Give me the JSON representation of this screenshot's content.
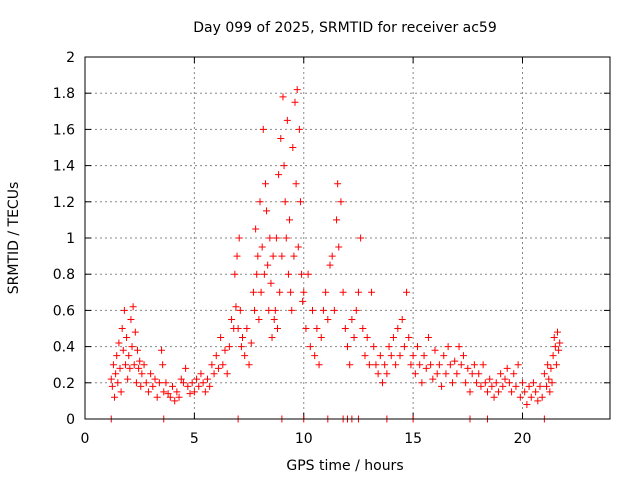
{
  "chart_data": {
    "type": "scatter",
    "title": "Day 099 of 2025, SRMTID for receiver ac59",
    "xlabel": "GPS time / hours",
    "ylabel": "SRMTID / TECUs",
    "xlim": [
      0,
      24
    ],
    "ylim": [
      0,
      2
    ],
    "x_ticks": [
      0,
      5,
      10,
      15,
      20
    ],
    "y_ticks": [
      0,
      0.2,
      0.4,
      0.6,
      0.8,
      1,
      1.2,
      1.4,
      1.6,
      1.8,
      2
    ],
    "x_tick_labels": [
      "0",
      "5",
      "10",
      "15",
      "20"
    ],
    "y_tick_labels": [
      "0",
      "0.2",
      "0.4",
      "0.6",
      "0.8",
      "1",
      "1.2",
      "1.4",
      "1.6",
      "1.8",
      "2"
    ],
    "grid": true,
    "marker": "+",
    "color": "#ff0000",
    "series": [
      {
        "name": "SRMTID",
        "points": [
          [
            1.2,
            0.22
          ],
          [
            1.25,
            0.18
          ],
          [
            1.3,
            0.3
          ],
          [
            1.35,
            0.12
          ],
          [
            1.4,
            0.25
          ],
          [
            1.45,
            0.35
          ],
          [
            1.5,
            0.2
          ],
          [
            1.55,
            0.42
          ],
          [
            1.6,
            0.28
          ],
          [
            1.65,
            0.15
          ],
          [
            1.7,
            0.5
          ],
          [
            1.75,
            0.38
          ],
          [
            1.8,
            0.6
          ],
          [
            1.85,
            0.3
          ],
          [
            1.9,
            0.45
          ],
          [
            1.95,
            0.22
          ],
          [
            2.0,
            0.35
          ],
          [
            2.05,
            0.28
          ],
          [
            2.1,
            0.55
          ],
          [
            2.15,
            0.4
          ],
          [
            2.2,
            0.62
          ],
          [
            2.25,
            0.3
          ],
          [
            2.3,
            0.48
          ],
          [
            2.35,
            0.2
          ],
          [
            2.4,
            0.38
          ],
          [
            2.45,
            0.28
          ],
          [
            2.5,
            0.32
          ],
          [
            2.55,
            0.18
          ],
          [
            2.6,
            0.25
          ],
          [
            2.7,
            0.3
          ],
          [
            2.8,
            0.2
          ],
          [
            2.9,
            0.15
          ],
          [
            3.0,
            0.25
          ],
          [
            3.1,
            0.18
          ],
          [
            3.2,
            0.22
          ],
          [
            3.3,
            0.12
          ],
          [
            3.4,
            0.2
          ],
          [
            3.5,
            0.38
          ],
          [
            3.55,
            0.3
          ],
          [
            3.6,
            0.15
          ],
          [
            3.7,
            0.2
          ],
          [
            3.8,
            0.14
          ],
          [
            3.9,
            0.12
          ],
          [
            4.0,
            0.18
          ],
          [
            4.1,
            0.1
          ],
          [
            4.2,
            0.15
          ],
          [
            4.3,
            0.12
          ],
          [
            4.4,
            0.22
          ],
          [
            4.5,
            0.2
          ],
          [
            4.6,
            0.28
          ],
          [
            4.7,
            0.18
          ],
          [
            4.8,
            0.14
          ],
          [
            4.9,
            0.2
          ],
          [
            5.0,
            0.15
          ],
          [
            5.1,
            0.22
          ],
          [
            5.2,
            0.18
          ],
          [
            5.3,
            0.25
          ],
          [
            5.4,
            0.2
          ],
          [
            5.5,
            0.15
          ],
          [
            5.6,
            0.22
          ],
          [
            5.7,
            0.18
          ],
          [
            5.8,
            0.3
          ],
          [
            5.9,
            0.25
          ],
          [
            6.0,
            0.35
          ],
          [
            6.1,
            0.28
          ],
          [
            6.2,
            0.45
          ],
          [
            6.3,
            0.3
          ],
          [
            6.4,
            0.38
          ],
          [
            6.5,
            0.25
          ],
          [
            6.6,
            0.4
          ],
          [
            6.7,
            0.55
          ],
          [
            6.8,
            0.5
          ],
          [
            6.85,
            0.8
          ],
          [
            6.9,
            0.62
          ],
          [
            6.95,
            0.9
          ],
          [
            7.0,
            0.5
          ],
          [
            7.05,
            1.0
          ],
          [
            7.1,
            0.6
          ],
          [
            7.15,
            0.4
          ],
          [
            7.2,
            0.45
          ],
          [
            7.3,
            0.35
          ],
          [
            7.4,
            0.5
          ],
          [
            7.5,
            0.3
          ],
          [
            7.6,
            0.42
          ],
          [
            7.7,
            0.7
          ],
          [
            7.75,
            0.6
          ],
          [
            7.8,
            1.05
          ],
          [
            7.85,
            0.8
          ],
          [
            7.9,
            0.9
          ],
          [
            7.95,
            0.55
          ],
          [
            8.0,
            1.2
          ],
          [
            8.05,
            0.7
          ],
          [
            8.1,
            0.95
          ],
          [
            8.15,
            1.6
          ],
          [
            8.2,
            0.8
          ],
          [
            8.25,
            1.3
          ],
          [
            8.3,
            1.15
          ],
          [
            8.35,
            0.85
          ],
          [
            8.4,
            0.6
          ],
          [
            8.45,
            1.0
          ],
          [
            8.5,
            0.75
          ],
          [
            8.55,
            0.45
          ],
          [
            8.6,
            0.9
          ],
          [
            8.65,
            0.55
          ],
          [
            8.7,
            0.6
          ],
          [
            8.75,
            1.0
          ],
          [
            8.8,
            0.5
          ],
          [
            8.85,
            1.35
          ],
          [
            8.9,
            0.7
          ],
          [
            8.95,
            1.55
          ],
          [
            9.0,
            0.9
          ],
          [
            9.05,
            1.78
          ],
          [
            9.1,
            1.4
          ],
          [
            9.15,
            1.2
          ],
          [
            9.2,
            1.0
          ],
          [
            9.25,
            1.65
          ],
          [
            9.3,
            0.8
          ],
          [
            9.35,
            1.1
          ],
          [
            9.4,
            0.7
          ],
          [
            9.45,
            0.6
          ],
          [
            9.5,
            1.5
          ],
          [
            9.55,
            0.9
          ],
          [
            9.6,
            1.75
          ],
          [
            9.65,
            1.3
          ],
          [
            9.7,
            1.82
          ],
          [
            9.75,
            0.95
          ],
          [
            9.8,
            1.6
          ],
          [
            9.85,
            1.2
          ],
          [
            9.9,
            0.8
          ],
          [
            9.95,
            0.65
          ],
          [
            10.0,
            0.7
          ],
          [
            10.1,
            0.5
          ],
          [
            10.2,
            0.8
          ],
          [
            10.3,
            0.4
          ],
          [
            10.4,
            0.6
          ],
          [
            10.5,
            0.35
          ],
          [
            10.6,
            0.5
          ],
          [
            10.7,
            0.3
          ],
          [
            10.8,
            0.45
          ],
          [
            10.9,
            0.6
          ],
          [
            11.0,
            0.7
          ],
          [
            11.1,
            0.55
          ],
          [
            11.2,
            0.85
          ],
          [
            11.3,
            0.9
          ],
          [
            11.4,
            0.6
          ],
          [
            11.5,
            1.1
          ],
          [
            11.55,
            1.3
          ],
          [
            11.6,
            0.95
          ],
          [
            11.7,
            1.2
          ],
          [
            11.8,
            0.7
          ],
          [
            11.9,
            0.5
          ],
          [
            12.0,
            0.4
          ],
          [
            12.1,
            0.3
          ],
          [
            12.2,
            0.55
          ],
          [
            12.3,
            0.45
          ],
          [
            12.4,
            0.6
          ],
          [
            12.5,
            0.7
          ],
          [
            12.6,
            1.0
          ],
          [
            12.7,
            0.5
          ],
          [
            12.8,
            0.35
          ],
          [
            12.9,
            0.45
          ],
          [
            13.0,
            0.3
          ],
          [
            13.1,
            0.7
          ],
          [
            13.2,
            0.4
          ],
          [
            13.3,
            0.3
          ],
          [
            13.4,
            0.25
          ],
          [
            13.5,
            0.35
          ],
          [
            13.6,
            0.2
          ],
          [
            13.7,
            0.3
          ],
          [
            13.8,
            0.25
          ],
          [
            13.9,
            0.4
          ],
          [
            14.0,
            0.35
          ],
          [
            14.1,
            0.45
          ],
          [
            14.2,
            0.3
          ],
          [
            14.3,
            0.5
          ],
          [
            14.4,
            0.35
          ],
          [
            14.5,
            0.55
          ],
          [
            14.6,
            0.4
          ],
          [
            14.7,
            0.7
          ],
          [
            14.8,
            0.45
          ],
          [
            14.9,
            0.3
          ],
          [
            15.0,
            0.35
          ],
          [
            15.1,
            0.25
          ],
          [
            15.2,
            0.4
          ],
          [
            15.3,
            0.3
          ],
          [
            15.4,
            0.2
          ],
          [
            15.5,
            0.35
          ],
          [
            15.6,
            0.28
          ],
          [
            15.7,
            0.45
          ],
          [
            15.8,
            0.3
          ],
          [
            15.9,
            0.22
          ],
          [
            16.0,
            0.38
          ],
          [
            16.1,
            0.25
          ],
          [
            16.2,
            0.3
          ],
          [
            16.3,
            0.18
          ],
          [
            16.4,
            0.35
          ],
          [
            16.5,
            0.25
          ],
          [
            16.6,
            0.4
          ],
          [
            16.7,
            0.3
          ],
          [
            16.8,
            0.2
          ],
          [
            16.9,
            0.32
          ],
          [
            17.0,
            0.25
          ],
          [
            17.1,
            0.4
          ],
          [
            17.2,
            0.3
          ],
          [
            17.3,
            0.35
          ],
          [
            17.4,
            0.2
          ],
          [
            17.5,
            0.28
          ],
          [
            17.6,
            0.15
          ],
          [
            17.7,
            0.25
          ],
          [
            17.8,
            0.3
          ],
          [
            17.9,
            0.2
          ],
          [
            18.0,
            0.25
          ],
          [
            18.1,
            0.18
          ],
          [
            18.2,
            0.3
          ],
          [
            18.3,
            0.2
          ],
          [
            18.4,
            0.15
          ],
          [
            18.5,
            0.22
          ],
          [
            18.6,
            0.18
          ],
          [
            18.7,
            0.12
          ],
          [
            18.8,
            0.2
          ],
          [
            18.9,
            0.15
          ],
          [
            19.0,
            0.25
          ],
          [
            19.1,
            0.18
          ],
          [
            19.2,
            0.22
          ],
          [
            19.3,
            0.28
          ],
          [
            19.4,
            0.2
          ],
          [
            19.5,
            0.15
          ],
          [
            19.6,
            0.25
          ],
          [
            19.7,
            0.18
          ],
          [
            19.8,
            0.3
          ],
          [
            19.9,
            0.12
          ],
          [
            20.0,
            0.2
          ],
          [
            20.1,
            0.15
          ],
          [
            20.2,
            0.08
          ],
          [
            20.3,
            0.18
          ],
          [
            20.4,
            0.12
          ],
          [
            20.5,
            0.2
          ],
          [
            20.6,
            0.15
          ],
          [
            20.7,
            0.1
          ],
          [
            20.8,
            0.18
          ],
          [
            20.9,
            0.12
          ],
          [
            21.0,
            0.25
          ],
          [
            21.1,
            0.18
          ],
          [
            21.15,
            0.3
          ],
          [
            21.2,
            0.22
          ],
          [
            21.25,
            0.15
          ],
          [
            21.3,
            0.28
          ],
          [
            21.35,
            0.2
          ],
          [
            21.4,
            0.35
          ],
          [
            21.45,
            0.45
          ],
          [
            21.5,
            0.4
          ],
          [
            21.55,
            0.3
          ],
          [
            21.6,
            0.48
          ],
          [
            21.65,
            0.38
          ],
          [
            21.7,
            0.42
          ],
          [
            1.2,
            0.0
          ],
          [
            3.6,
            0.0
          ],
          [
            7.0,
            0.0
          ],
          [
            9.0,
            0.0
          ],
          [
            10.0,
            0.0
          ],
          [
            11.1,
            0.0
          ],
          [
            11.8,
            0.0
          ],
          [
            12.0,
            0.0
          ],
          [
            12.2,
            0.0
          ],
          [
            12.5,
            0.0
          ],
          [
            13.8,
            0.0
          ],
          [
            15.0,
            0.0
          ],
          [
            17.6,
            0.0
          ],
          [
            18.4,
            0.0
          ],
          [
            21.0,
            0.0
          ]
        ]
      }
    ]
  }
}
